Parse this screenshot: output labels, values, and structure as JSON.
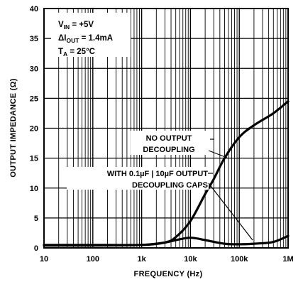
{
  "chart_data": {
    "type": "line",
    "xlabel": "FREQUENCY (Hz)",
    "ylabel": "OUTPUT IMPEDANCE (Ω)",
    "x_scale": "log",
    "xlim": [
      10,
      1000000
    ],
    "ylim": [
      0,
      40
    ],
    "x_ticks": [
      10,
      100,
      1000,
      10000,
      100000,
      1000000
    ],
    "x_tick_labels": [
      "10",
      "100",
      "1k",
      "10k",
      "100k",
      "1M"
    ],
    "y_ticks": [
      0,
      5,
      10,
      15,
      20,
      25,
      30,
      35,
      40
    ],
    "y_tick_labels": [
      "0",
      "5",
      "10",
      "15",
      "20",
      "25",
      "30",
      "35",
      "40"
    ],
    "grid": true,
    "conditions": [
      {
        "symbol": "V",
        "sub": "IN",
        "value": " = +5V"
      },
      {
        "symbol": "ΔI",
        "sub": "OUT",
        "value": " = 1.4mA"
      },
      {
        "symbol": "T",
        "sub": "A",
        "value": " = 25°C"
      }
    ],
    "annotations": [
      {
        "lines": [
          "NO OUTPUT",
          "DECOUPLING"
        ]
      },
      {
        "lines": [
          "WITH 0.1µF  |  10µF OUTPUT",
          "DECOUPLING CAPS"
        ]
      }
    ],
    "series": [
      {
        "x": [
          10,
          100,
          1000,
          3000,
          5000,
          10000,
          20000,
          30000,
          50000,
          100000,
          200000,
          500000,
          1000000
        ],
        "y": [
          0.5,
          0.5,
          0.5,
          0.9,
          1.8,
          4.5,
          9.0,
          11.5,
          15.0,
          18.5,
          20.5,
          22.5,
          24.5
        ]
      },
      {
        "x": [
          10,
          100,
          1000,
          3000,
          5000,
          10000,
          20000,
          50000,
          100000,
          200000,
          500000,
          1000000
        ],
        "y": [
          0.4,
          0.4,
          0.5,
          0.9,
          1.3,
          1.7,
          1.3,
          0.7,
          0.6,
          0.7,
          1.0,
          2.0
        ]
      }
    ]
  }
}
